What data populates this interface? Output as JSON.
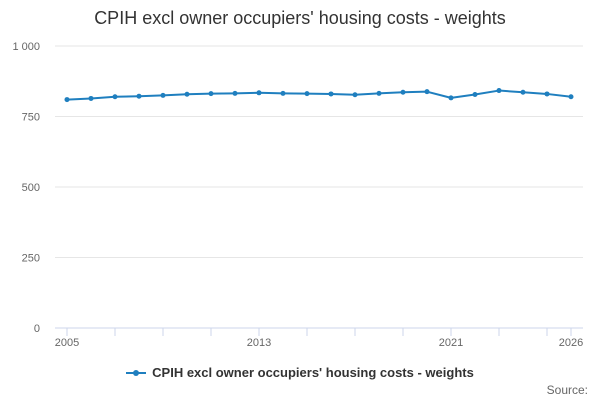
{
  "colors": {
    "series": "#1f7fbf",
    "grid": "#e6e6e6",
    "axis": "#ccd6eb"
  },
  "source_label": "Source:",
  "chart_data": {
    "type": "line",
    "title": "CPIH excl owner occupiers' housing costs - weights",
    "xlabel": "",
    "ylabel": "",
    "ylim": [
      0,
      1000
    ],
    "yticks": [
      0,
      250,
      500,
      750,
      1000
    ],
    "ytick_labels": [
      "0",
      "250",
      "500",
      "750",
      "1 000"
    ],
    "xlim": [
      2005,
      2026
    ],
    "xtick_labels": [
      "2005",
      "2013",
      "2021",
      "2026"
    ],
    "xtick_values": [
      2005,
      2013,
      2021,
      2026
    ],
    "legend_position": "bottom-center",
    "grid": true,
    "series": [
      {
        "name": "CPIH excl owner occupiers' housing costs - weights",
        "x": [
          2005,
          2006,
          2007,
          2008,
          2009,
          2010,
          2011,
          2012,
          2013,
          2014,
          2015,
          2016,
          2017,
          2018,
          2019,
          2020,
          2021,
          2022,
          2023,
          2024,
          2025,
          2026
        ],
        "values": [
          810,
          814,
          820,
          822,
          825,
          829,
          831,
          832,
          834,
          832,
          831,
          830,
          827,
          832,
          836,
          838,
          816,
          828,
          842,
          836,
          830,
          820
        ]
      }
    ]
  }
}
